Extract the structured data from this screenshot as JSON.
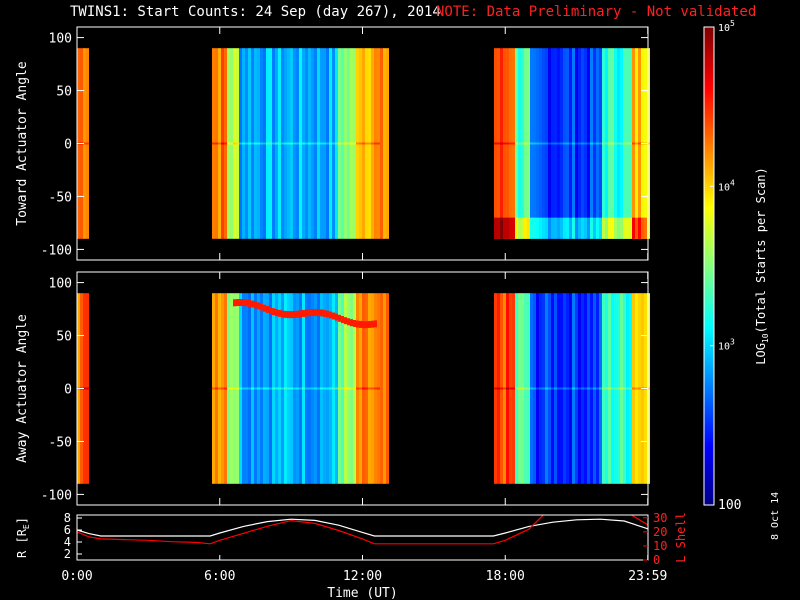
{
  "title": "TWINS1: Start Counts: 24 Sep (day 267), 2014",
  "note": "NOTE: Data Preliminary - Not validated",
  "date_stamp": "8 Oct 14",
  "colors": {
    "background": "#000000",
    "note": "#ff2020",
    "r_line": "#ffffff",
    "lshell_line": "#ff0000",
    "colormap": [
      "#000080",
      "#0000ff",
      "#0080ff",
      "#00ffff",
      "#80ff80",
      "#ffff00",
      "#ff8000",
      "#ff0000",
      "#800000"
    ]
  },
  "chart_data": [
    {
      "type": "heatmap",
      "name": "toward-panel",
      "ylabel": "Toward Actuator Angle",
      "ylim": [
        -110,
        110
      ],
      "yticks": [
        100,
        50,
        0,
        -50,
        -100
      ],
      "xlim": [
        0,
        24
      ],
      "data_coverage_hours": [
        [
          0,
          0.5
        ],
        [
          5.6,
          13.0
        ],
        [
          17.5,
          23.99
        ]
      ],
      "data_angle_range": [
        -90,
        90
      ]
    },
    {
      "type": "heatmap",
      "name": "away-panel",
      "ylabel": "Away Actuator Angle",
      "ylim": [
        -110,
        110
      ],
      "yticks": [
        100,
        50,
        0,
        -50,
        -100
      ],
      "xlim": [
        0,
        24
      ],
      "data_coverage_hours": [
        [
          0,
          0.5
        ],
        [
          5.6,
          13.0
        ],
        [
          17.5,
          23.99
        ]
      ],
      "data_angle_range": [
        -90,
        90
      ]
    },
    {
      "type": "line",
      "name": "orbit-panel",
      "xlabel": "Time (UT)",
      "xticks": [
        "0:00",
        "6:00",
        "12:00",
        "18:00",
        "23:59"
      ],
      "xtick_hours": [
        0,
        6,
        12,
        18,
        23.99
      ],
      "ylabel_left": "R [R",
      "ylabel_left_sub": "E",
      "ylabel_left_close": "]",
      "yticks_left": [
        "2",
        "4",
        "6",
        "8"
      ],
      "ylim_left": [
        1,
        8.5
      ],
      "ylabel_right": "L Shell",
      "yticks_right": [
        "0",
        "10",
        "20",
        "30"
      ],
      "ylim_right": [
        0,
        32
      ],
      "series": [
        {
          "axis": "left",
          "color": "#ffffff",
          "x": [
            0,
            0.5,
            1,
            2,
            3,
            4,
            5,
            5.6,
            6,
            7,
            8,
            9,
            10,
            11,
            12,
            12.5,
            13,
            14,
            15,
            16,
            17,
            17.5,
            18,
            19,
            20,
            21,
            22,
            23,
            23.99
          ],
          "y": [
            6.0,
            5.4,
            5.0,
            5.0,
            5.0,
            5.0,
            5.0,
            5.0,
            5.5,
            6.6,
            7.4,
            7.8,
            7.6,
            6.8,
            5.6,
            5.0,
            5.0,
            5.0,
            5.0,
            5.0,
            5.0,
            5.0,
            5.5,
            6.6,
            7.3,
            7.7,
            7.8,
            7.5,
            6.2
          ]
        },
        {
          "axis": "right",
          "color": "#ff0000",
          "x": [
            0,
            0.5,
            1,
            2,
            3,
            4,
            5,
            5.6,
            6,
            7,
            8,
            9,
            10,
            11,
            12,
            12.5,
            13,
            14,
            15,
            16,
            17,
            17.5,
            18,
            19,
            19.6
          ],
          "y": [
            20,
            16.5,
            15,
            14.5,
            14,
            13,
            12.5,
            11.5,
            14,
            19,
            24,
            28,
            26,
            21,
            15,
            11.5,
            11.5,
            11.5,
            11.5,
            11.5,
            11.5,
            11.5,
            14,
            22,
            32
          ]
        },
        {
          "axis": "right",
          "color": "#ff0000",
          "x": [
            23.3,
            23.99
          ],
          "y": [
            32,
            25
          ]
        }
      ]
    }
  ],
  "colorbar": {
    "label_log": "LOG",
    "label_sub": "10",
    "label_rest": "(Total Starts per Scan)",
    "ticks": [
      "10",
      "10",
      "10"
    ],
    "tick_exps": [
      "5",
      "4",
      "3"
    ],
    "bottom_label": "100",
    "range_log10": [
      2,
      5
    ],
    "tick_values_log10": [
      5,
      4,
      3,
      2
    ]
  }
}
